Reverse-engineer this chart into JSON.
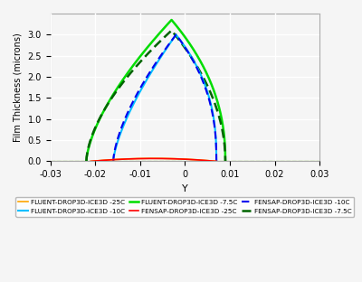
{
  "title": "",
  "xlabel": "Y",
  "ylabel": "Film Thickness (microns)",
  "xlim": [
    -0.03,
    0.03
  ],
  "ylim": [
    0,
    3.5
  ],
  "yticks": [
    0,
    0.5,
    1.0,
    1.5,
    2.0,
    2.5,
    3.0
  ],
  "xticks": [
    -0.03,
    -0.02,
    -0.01,
    0,
    0.01,
    0.02,
    0.03
  ],
  "background_color": "#f5f5f5",
  "grid_color": "#ffffff",
  "legend_entries": [
    {
      "label": "FLUENT-DROP3D-ICE3D -25C",
      "color": "#FFA500",
      "linestyle": "-",
      "lw": 1.2
    },
    {
      "label": "FLUENT-DROP3D-ICE3D -10C",
      "color": "#00BFFF",
      "linestyle": "-",
      "lw": 1.5
    },
    {
      "label": "FLUENT-DROP3D-ICE3D -7.5C",
      "color": "#00DD00",
      "linestyle": "-",
      "lw": 1.8
    },
    {
      "label": "FENSAP-DROP3D-ICE3D -25C",
      "color": "#FF0000",
      "linestyle": "-",
      "lw": 1.2
    },
    {
      "label": "FENSAP-DROP3D-ICE3D -10C",
      "color": "#0000EE",
      "linestyle": "--",
      "lw": 1.5
    },
    {
      "label": "FENSAP-DROP3D-ICE3D -7.5C",
      "color": "#006400",
      "linestyle": "--",
      "lw": 1.8
    }
  ]
}
